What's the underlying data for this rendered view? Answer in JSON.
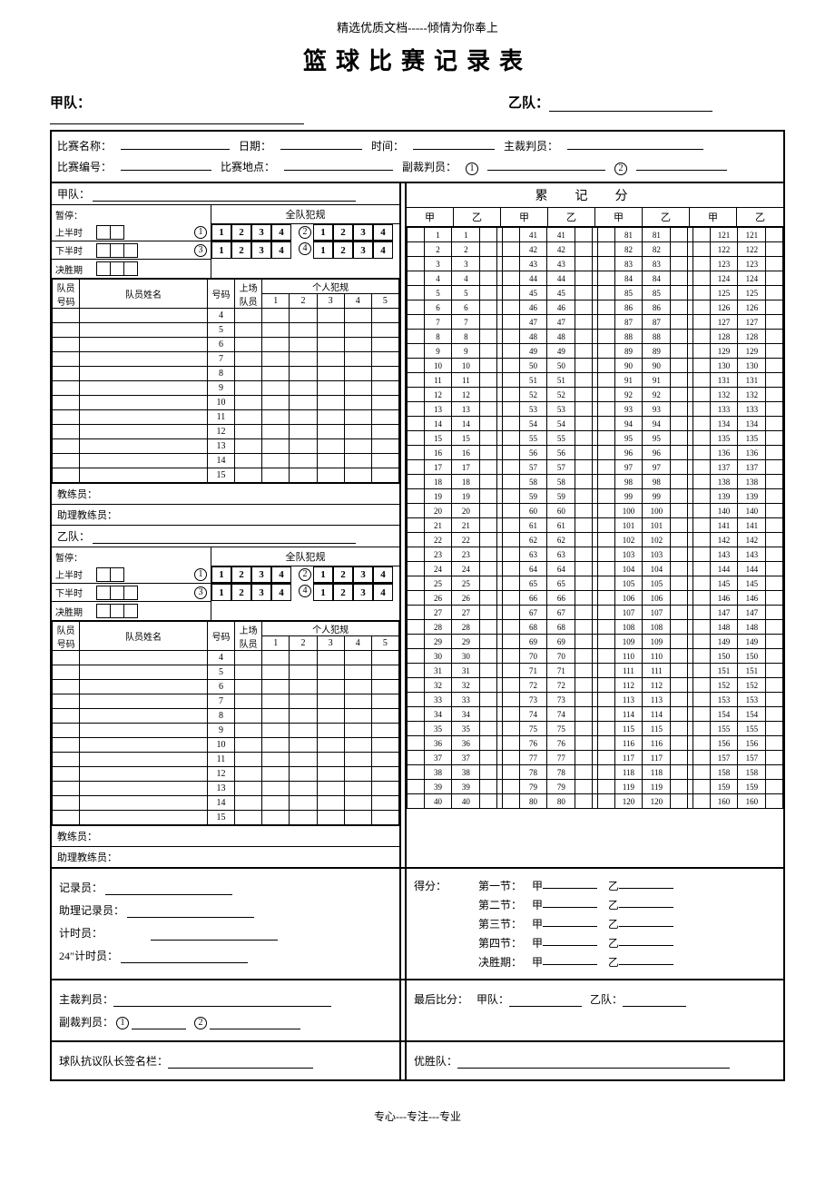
{
  "header": "精选优质文档-----倾情为你奉上",
  "title": "篮球比赛记录表",
  "labels": {
    "team_a": "甲队：",
    "team_b": "乙队：",
    "match_name": "比赛名称：",
    "date": "日期：",
    "time": "时间：",
    "main_ref": "主裁判员：",
    "match_no": "比赛编号：",
    "venue": "比赛地点：",
    "asst_ref": "副裁判员：",
    "timeout": "暂停：",
    "team_fouls": "全队犯规",
    "first_half": "上半时",
    "second_half": "下半时",
    "overtime": "决胜期",
    "player_no": "队员号码",
    "player_name": "队员姓名",
    "number": "号码",
    "on_court": "上场队员",
    "personal_fouls": "个人犯规",
    "coach": "教练员：",
    "asst_coach": "助理教练员：",
    "running_score": "累记分",
    "jia": "甲",
    "yi": "乙",
    "scorer": "记录员：",
    "asst_scorer": "助理记录员：",
    "timer": "计时员：",
    "shot_clock": "24″计时员：",
    "main_ref2": "主裁判员：",
    "asst_ref2": "副裁判员：",
    "protest": "球队抗议队长签名栏：",
    "score_by": "得分：",
    "q1": "第一节：",
    "q2": "第二节：",
    "q3": "第三节：",
    "q4": "第四节：",
    "ot": "决胜期：",
    "final": "最后比分：",
    "winner": "优胜队：",
    "footer": "专心---专注---专业"
  },
  "roster_numbers": [
    4,
    5,
    6,
    7,
    8,
    9,
    10,
    11,
    12,
    13,
    14,
    15
  ],
  "foul_cols": [
    1,
    2,
    3,
    4,
    5
  ],
  "quarter_fouls": [
    1,
    2,
    3,
    4
  ],
  "score_range": {
    "start": 1,
    "end": 160,
    "rows": 40
  }
}
